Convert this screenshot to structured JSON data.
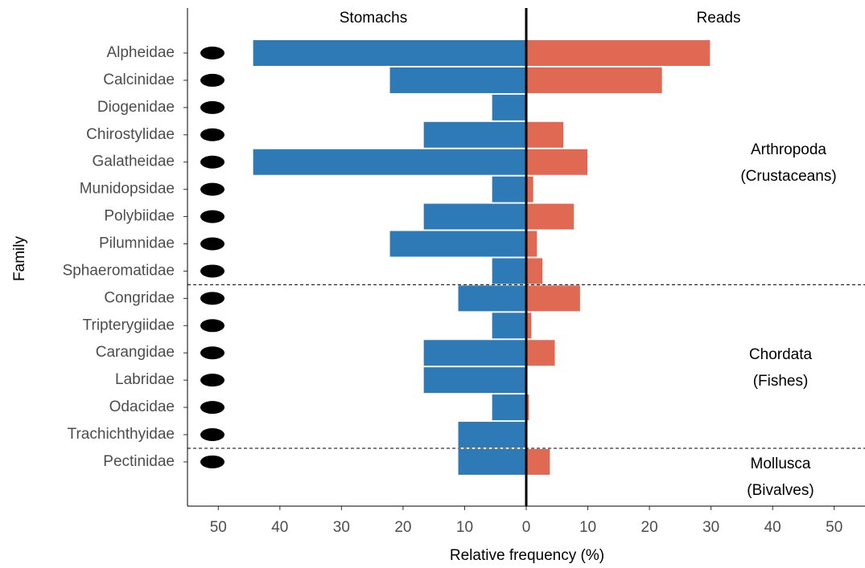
{
  "chart_data": {
    "type": "diverging-bar",
    "xlabel": "Relative frequency (%)",
    "ylabel": "Family",
    "categories": [
      "Alpheidae",
      "Calcinidae",
      "Diogenidae",
      "Chirostylidae",
      "Galatheidae",
      "Munidopsidae",
      "Polybiidae",
      "Pilumnidae",
      "Sphaeromatidae",
      "Congridae",
      "Tripterygiidae",
      "Carangidae",
      "Labridae",
      "Odacidae",
      "Trachichthyidae",
      "Pectinidae"
    ],
    "series": [
      {
        "name": "Stomachs",
        "color": "#2e7ab6",
        "values": [
          -44.4,
          -22.2,
          -5.6,
          -16.7,
          -44.4,
          -5.6,
          -16.7,
          -22.2,
          -5.6,
          -11.1,
          -5.6,
          -16.7,
          -16.7,
          -5.6,
          -11.1,
          -11.1
        ]
      },
      {
        "name": "Reads",
        "color": "#e06953",
        "values": [
          29.9,
          22.1,
          0,
          6.1,
          10.0,
          1.2,
          7.8,
          1.8,
          2.7,
          8.8,
          0.9,
          4.7,
          0,
          0.5,
          0,
          3.9
        ]
      }
    ],
    "groups": [
      {
        "name": "Arthropoda",
        "common": "(Crustaceans)"
      },
      {
        "name": "Chordata",
        "common": "(Fishes)"
      },
      {
        "name": "Mollusca",
        "common": "(Bivalves)"
      }
    ],
    "xlim": [
      -55,
      55
    ],
    "xticks": [
      {
        "value": -50,
        "label": "50"
      },
      {
        "value": -40,
        "label": "40"
      },
      {
        "value": -30,
        "label": "30"
      },
      {
        "value": -20,
        "label": "20"
      },
      {
        "value": -10,
        "label": "10"
      },
      0,
      10,
      20,
      30,
      40,
      50
    ],
    "grid": false
  }
}
